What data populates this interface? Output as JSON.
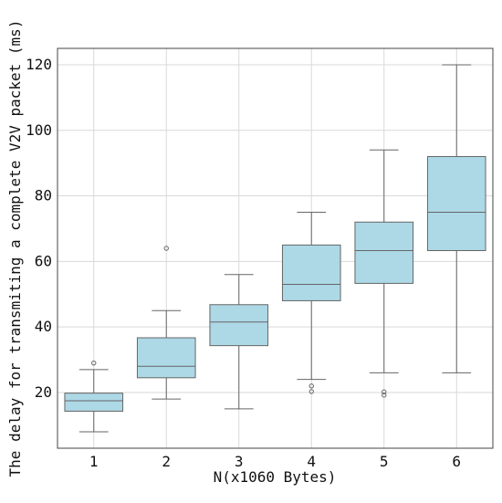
{
  "chart_data": {
    "type": "box",
    "title": "",
    "xlabel": "N(x1060 Bytes)",
    "ylabel": "The delay for transmiting a complete V2V packet (ms)",
    "categories": [
      "1",
      "2",
      "3",
      "4",
      "5",
      "6"
    ],
    "yticks": [
      20,
      40,
      60,
      80,
      100,
      120
    ],
    "ylim": [
      3,
      125
    ],
    "grid": true,
    "legend": "none",
    "box_color": "#add8e6",
    "edge_color": "#666666",
    "boxes": [
      {
        "category": "1",
        "whisker_low": 8,
        "q1": 14.3,
        "median": 17.5,
        "q3": 19.8,
        "whisker_high": 27,
        "outliers": [
          29
        ]
      },
      {
        "category": "2",
        "whisker_low": 18,
        "q1": 24.5,
        "median": 28,
        "q3": 36.7,
        "whisker_high": 45,
        "outliers": [
          64
        ]
      },
      {
        "category": "3",
        "whisker_low": 15,
        "q1": 34.3,
        "median": 41.5,
        "q3": 46.8,
        "whisker_high": 56,
        "outliers": []
      },
      {
        "category": "4",
        "whisker_low": 24,
        "q1": 48,
        "median": 53,
        "q3": 65,
        "whisker_high": 75,
        "outliers": [
          22,
          20.3
        ]
      },
      {
        "category": "5",
        "whisker_low": 26,
        "q1": 53.3,
        "median": 63.3,
        "q3": 72,
        "whisker_high": 94,
        "outliers": [
          20.2,
          19.2
        ]
      },
      {
        "category": "6",
        "whisker_low": 26,
        "q1": 63.3,
        "median": 75,
        "q3": 92,
        "whisker_high": 120,
        "outliers": []
      }
    ]
  }
}
